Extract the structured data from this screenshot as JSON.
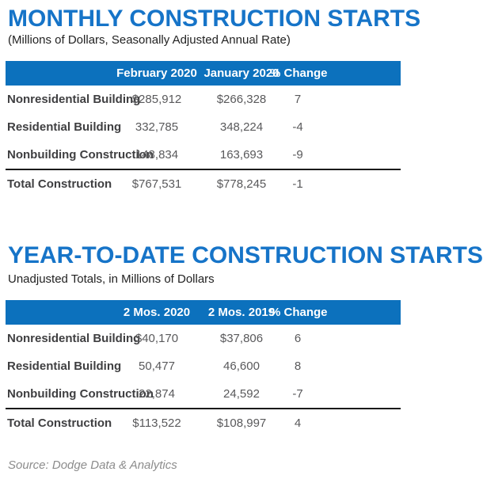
{
  "page": {
    "accent_blue": "#0C71BD",
    "title_blue": "#1674C8",
    "background": "#ffffff"
  },
  "monthly": {
    "title": "MONTHLY CONSTRUCTION STARTS",
    "subtitle": "(Millions of Dollars, Seasonally Adjusted Annual Rate)",
    "columns": [
      "",
      "February 2020",
      "January 2020",
      "% Change"
    ],
    "rows": [
      {
        "label": "Nonresidential Building",
        "col1": "$285,912",
        "col2": "$266,328",
        "change": "7"
      },
      {
        "label": "Residential Building",
        "col1": "332,785",
        "col2": "348,224",
        "change": "-4"
      },
      {
        "label": "Nonbuilding Construction",
        "col1": "148,834",
        "col2": "163,693",
        "change": "-9"
      }
    ],
    "total": {
      "label": "Total Construction",
      "col1": "$767,531",
      "col2": "$778,245",
      "change": "-1"
    }
  },
  "ytd": {
    "title": "YEAR-TO-DATE CONSTRUCTION STARTS",
    "subtitle": "Unadjusted Totals, in Millions of Dollars",
    "columns": [
      "",
      "2 Mos. 2020",
      "2 Mos. 2019",
      "% Change"
    ],
    "rows": [
      {
        "label": "Nonresidential Building",
        "col1": "$40,170",
        "col2": "$37,806",
        "change": "6"
      },
      {
        "label": "Residential Building",
        "col1": "50,477",
        "col2": "46,600",
        "change": "8"
      },
      {
        "label": "Nonbuilding Construction",
        "col1": "22,874",
        "col2": "24,592",
        "change": "-7"
      }
    ],
    "total": {
      "label": "Total Construction",
      "col1": "$113,522",
      "col2": "$108,997",
      "change": "4"
    }
  },
  "footer": {
    "source": "Source: Dodge Data & Analytics"
  },
  "chart_data": [
    {
      "type": "table",
      "title": "MONTHLY CONSTRUCTION STARTS",
      "subtitle": "(Millions of Dollars, Seasonally Adjusted Annual Rate)",
      "columns": [
        "",
        "February 2020",
        "January 2020",
        "% Change"
      ],
      "rows": [
        [
          "Nonresidential Building",
          285912,
          266328,
          7
        ],
        [
          "Residential Building",
          332785,
          348224,
          -4
        ],
        [
          "Nonbuilding Construction",
          148834,
          163693,
          -9
        ],
        [
          "Total Construction",
          767531,
          778245,
          -1
        ]
      ]
    },
    {
      "type": "table",
      "title": "YEAR-TO-DATE CONSTRUCTION STARTS",
      "subtitle": "Unadjusted Totals, in Millions of Dollars",
      "columns": [
        "",
        "2 Mos. 2020",
        "2 Mos. 2019",
        "% Change"
      ],
      "rows": [
        [
          "Nonresidential Building",
          40170,
          37806,
          6
        ],
        [
          "Residential Building",
          50477,
          46600,
          8
        ],
        [
          "Nonbuilding Construction",
          22874,
          24592,
          -7
        ],
        [
          "Total Construction",
          113522,
          108997,
          4
        ]
      ]
    }
  ]
}
